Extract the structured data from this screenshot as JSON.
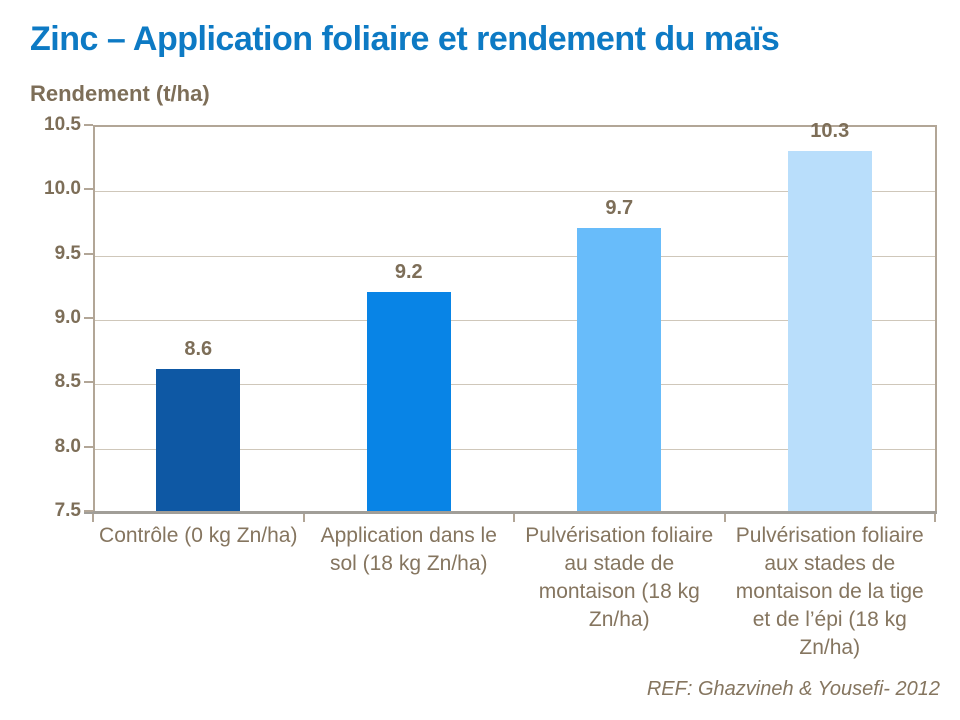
{
  "page": {
    "background": "#ffffff"
  },
  "chart_data": {
    "type": "bar",
    "title": "Zinc – Application foliaire et rendement du maïs",
    "ylabel": "Rendement (t/ha)",
    "xlabel": "",
    "categories": [
      "Contrôle (0 kg Zn/ha)",
      "Application dans le sol (18 kg Zn/ha)",
      "Pulvérisation foliaire au stade de montaison (18 kg Zn/ha)",
      "Pulvérisation foliaire aux stades de montaison de la tige et de l’épi (18 kg Zn/ha)"
    ],
    "values": [
      8.6,
      9.2,
      9.7,
      10.3
    ],
    "ylim": [
      7.5,
      10.5
    ],
    "yticks": [
      10.5,
      10.0,
      9.5,
      9.0,
      8.5,
      8.0,
      7.5
    ],
    "ytick_step": 0.5,
    "grid": true,
    "legend": false,
    "value_labels_shown": true,
    "colors": {
      "title_text": "#0d7ac4",
      "axis_text": "#7d6e58",
      "value_label_text": "#7d6e58",
      "category_text": "#85755f",
      "bar_colors": [
        "#0e58a4",
        "#0884e6",
        "#68bcfa",
        "#b9defb"
      ],
      "gridline": "#cfc7ba",
      "axis_border": "#b2a697",
      "baseline": "#a19e98"
    }
  },
  "footer": {
    "reference": "REF: Ghazvineh & Yousefi- 2012"
  }
}
